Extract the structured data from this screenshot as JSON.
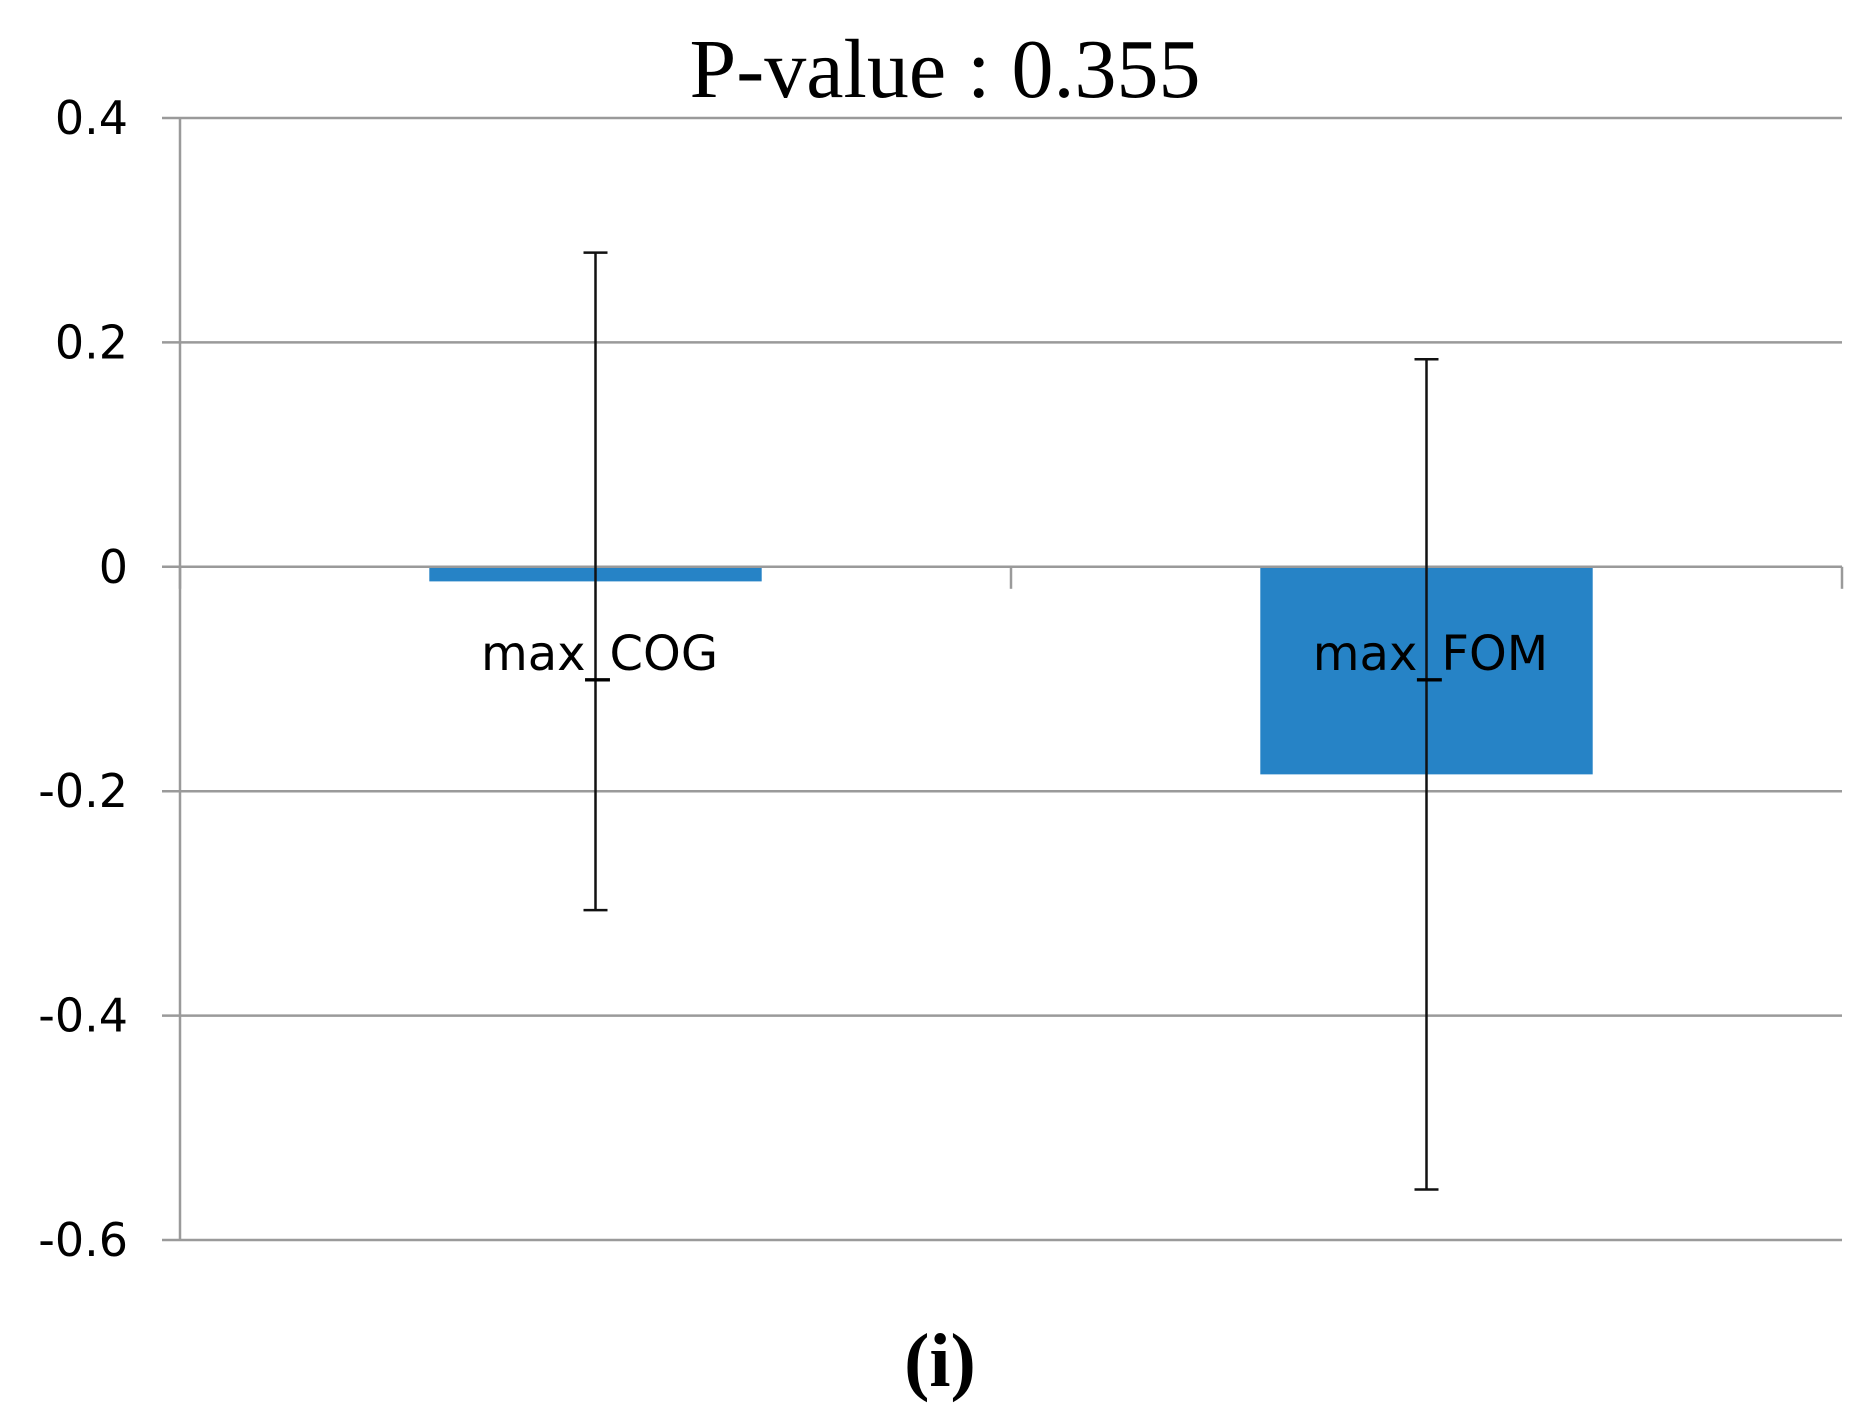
{
  "chart_data": {
    "type": "bar",
    "title": "P-value : 0.355",
    "xlabel": "",
    "ylabel": "",
    "categories": [
      "max_COG",
      "max_FOM"
    ],
    "values": [
      -0.013,
      -0.185
    ],
    "error_bars": [
      {
        "high": 0.28,
        "low": -0.306
      },
      {
        "high": 0.185,
        "low": -0.555
      }
    ],
    "ylim": [
      -0.6,
      0.4
    ],
    "yticks": [
      0.4,
      0.2,
      0,
      -0.2,
      -0.4,
      -0.6
    ],
    "ytick_labels": [
      "0.4",
      "0.2",
      "0",
      "-0.2",
      "-0.4",
      "-0.6"
    ],
    "grid": true,
    "bar_color": "#2683c6",
    "panel_label": "(i)"
  }
}
